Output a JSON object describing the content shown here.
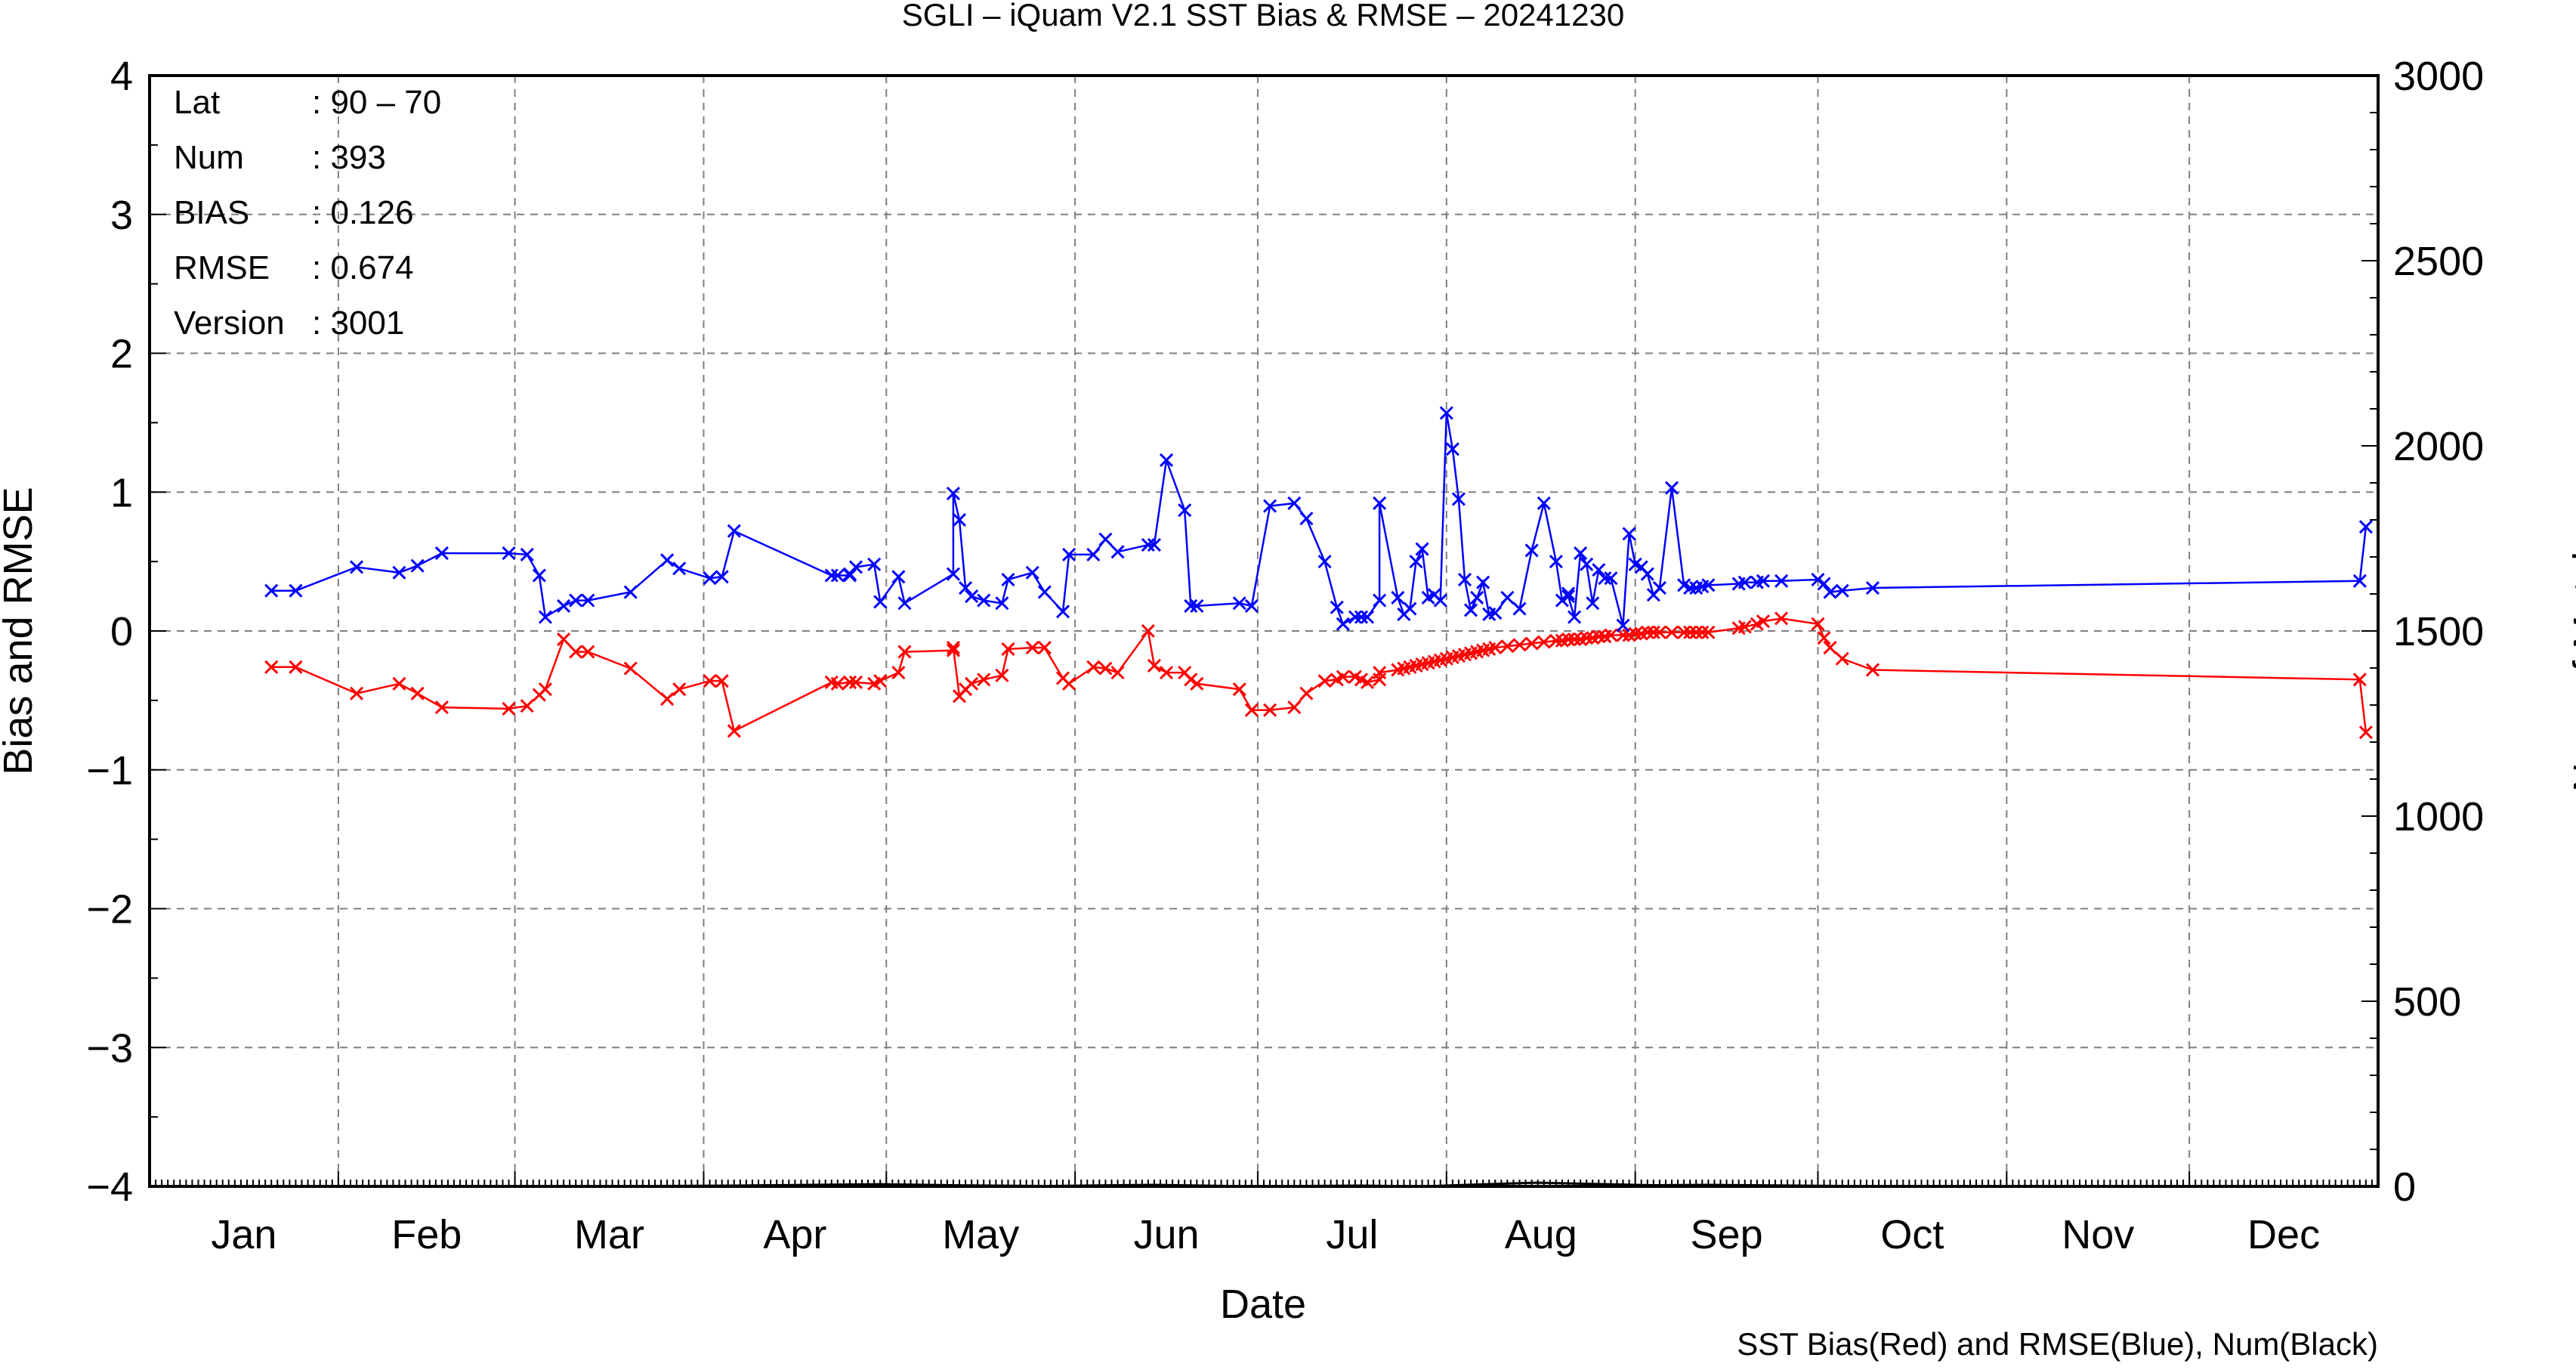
{
  "chart_data": {
    "type": "line",
    "title": "SGLI – iQuam V2.1 SST Bias & RMSE  – 20241230",
    "xlabel": "Date",
    "ylabel": "Bias and RMSE",
    "y2label": "Num of Match–up",
    "footnote": "SST Bias(Red) and RMSE(Blue), Num(Black)",
    "xlim": [
      0,
      366
    ],
    "ylim": [
      -4,
      4
    ],
    "y2lim": [
      0,
      3000
    ],
    "x_tick_labels": [
      "Jan",
      "Feb",
      "Mar",
      "Apr",
      "May",
      "Jun",
      "Jul",
      "Aug",
      "Sep",
      "Oct",
      "Nov",
      "Dec"
    ],
    "y_ticks": [
      -4,
      -3,
      -2,
      -1,
      0,
      1,
      2,
      3,
      4
    ],
    "y_tick_labels": [
      "−4",
      "−3",
      "−2",
      "−1",
      "0",
      "1",
      "2",
      "3",
      "4"
    ],
    "y2_ticks": [
      0,
      500,
      1000,
      1500,
      2000,
      2500,
      3000
    ],
    "y2_tick_labels": [
      "0",
      "500",
      "1000",
      "1500",
      "2000",
      "2500",
      "3000"
    ],
    "grid": true,
    "colors": {
      "bias": "#ff0000",
      "rmse": "#0000ff",
      "num": "#000000",
      "grid": "#7f7f7f"
    },
    "info": [
      {
        "label": "Lat",
        "value": ": 90 – 70"
      },
      {
        "label": "Num",
        "value": ": 393"
      },
      {
        "label": "BIAS",
        "value": ": 0.126"
      },
      {
        "label": "RMSE",
        "value": ": 0.674"
      },
      {
        "label": "Version",
        "value": ": 3001"
      }
    ],
    "series": [
      {
        "name": "SST Bias",
        "color": "#ff0000",
        "x": [
          20,
          24,
          34,
          41,
          44,
          48,
          59,
          62,
          64,
          65,
          68,
          70,
          72,
          79,
          85,
          87,
          92,
          94,
          96,
          112,
          113,
          115,
          115,
          116,
          119,
          120,
          123,
          124,
          132,
          132,
          133,
          134,
          135,
          137,
          140,
          141,
          145,
          147,
          150,
          151,
          155,
          157,
          159,
          164,
          165,
          167,
          170,
          171,
          172,
          179,
          181,
          184,
          188,
          190,
          193,
          195,
          196,
          198,
          199,
          200,
          202,
          202,
          205,
          206,
          207,
          208,
          209,
          210,
          211,
          212,
          213,
          214,
          215,
          216,
          217,
          218,
          219,
          220,
          221,
          223,
          225,
          227,
          229,
          231,
          232,
          233,
          233,
          234,
          235,
          236,
          237,
          238,
          239,
          240,
          242,
          243,
          244,
          245,
          246,
          247,
          248,
          250,
          252,
          253,
          254,
          255,
          256,
          261,
          262,
          264,
          265,
          268,
          274,
          275,
          276,
          278,
          283,
          363,
          364
        ],
        "y": [
          -0.26,
          -0.26,
          -0.45,
          -0.38,
          -0.45,
          -0.55,
          -0.56,
          -0.54,
          -0.46,
          -0.42,
          -0.06,
          -0.15,
          -0.15,
          -0.27,
          -0.49,
          -0.42,
          -0.36,
          -0.36,
          -0.72,
          -0.37,
          -0.38,
          -0.37,
          -0.37,
          -0.37,
          -0.38,
          -0.36,
          -0.3,
          -0.15,
          -0.14,
          -0.12,
          -0.47,
          -0.42,
          -0.38,
          -0.35,
          -0.32,
          -0.13,
          -0.12,
          -0.12,
          -0.34,
          -0.38,
          -0.26,
          -0.27,
          -0.3,
          0.0,
          -0.25,
          -0.3,
          -0.3,
          -0.35,
          -0.38,
          -0.42,
          -0.57,
          -0.57,
          -0.55,
          -0.45,
          -0.36,
          -0.35,
          -0.33,
          -0.33,
          -0.35,
          -0.37,
          -0.35,
          -0.3,
          -0.28,
          -0.27,
          -0.26,
          -0.25,
          -0.24,
          -0.23,
          -0.22,
          -0.21,
          -0.2,
          -0.19,
          -0.18,
          -0.17,
          -0.16,
          -0.15,
          -0.14,
          -0.13,
          -0.12,
          -0.11,
          -0.1,
          -0.09,
          -0.08,
          -0.07,
          -0.07,
          -0.06,
          -0.06,
          -0.06,
          -0.06,
          -0.05,
          -0.05,
          -0.04,
          -0.04,
          -0.03,
          -0.03,
          -0.03,
          -0.02,
          -0.02,
          -0.01,
          -0.01,
          -0.01,
          -0.01,
          -0.01,
          -0.01,
          -0.01,
          -0.01,
          -0.01,
          0.02,
          0.03,
          0.05,
          0.07,
          0.09,
          0.05,
          -0.05,
          -0.12,
          -0.2,
          -0.28,
          -0.35,
          -0.73
        ]
      },
      {
        "name": "SST RMSE",
        "color": "#0000ff",
        "x": [
          20,
          24,
          34,
          41,
          44,
          48,
          59,
          62,
          64,
          65,
          68,
          70,
          72,
          79,
          85,
          87,
          92,
          94,
          96,
          112,
          113,
          115,
          115,
          116,
          119,
          120,
          123,
          124,
          132,
          132,
          133,
          134,
          135,
          137,
          140,
          141,
          145,
          147,
          150,
          151,
          155,
          157,
          159,
          164,
          165,
          167,
          170,
          171,
          172,
          179,
          181,
          184,
          188,
          190,
          193,
          195,
          196,
          198,
          199,
          200,
          202,
          202,
          205,
          206,
          207,
          208,
          209,
          210,
          211,
          212,
          213,
          214,
          215,
          216,
          217,
          218,
          219,
          220,
          221,
          223,
          225,
          227,
          229,
          231,
          232,
          233,
          233,
          234,
          235,
          236,
          237,
          238,
          239,
          240,
          242,
          243,
          244,
          245,
          246,
          247,
          248,
          250,
          252,
          253,
          254,
          255,
          256,
          261,
          262,
          264,
          265,
          268,
          274,
          275,
          276,
          278,
          283,
          363,
          364
        ],
        "y": [
          0.29,
          0.29,
          0.46,
          0.42,
          0.47,
          0.56,
          0.56,
          0.55,
          0.4,
          0.1,
          0.18,
          0.22,
          0.22,
          0.28,
          0.51,
          0.45,
          0.38,
          0.39,
          0.72,
          0.4,
          0.4,
          0.4,
          0.41,
          0.46,
          0.48,
          0.21,
          0.39,
          0.2,
          0.41,
          0.99,
          0.8,
          0.31,
          0.25,
          0.22,
          0.2,
          0.37,
          0.42,
          0.28,
          0.14,
          0.55,
          0.55,
          0.66,
          0.57,
          0.62,
          0.62,
          1.23,
          0.87,
          0.18,
          0.18,
          0.2,
          0.18,
          0.9,
          0.92,
          0.81,
          0.5,
          0.17,
          0.05,
          0.1,
          0.1,
          0.1,
          0.22,
          0.92,
          0.24,
          0.12,
          0.16,
          0.5,
          0.59,
          0.24,
          0.26,
          0.22,
          1.57,
          1.31,
          0.95,
          0.37,
          0.15,
          0.24,
          0.35,
          0.12,
          0.13,
          0.24,
          0.16,
          0.58,
          0.92,
          0.5,
          0.22,
          0.27,
          0.25,
          0.1,
          0.56,
          0.48,
          0.2,
          0.44,
          0.38,
          0.38,
          0.04,
          0.7,
          0.48,
          0.46,
          0.41,
          0.26,
          0.31,
          1.03,
          0.33,
          0.31,
          0.31,
          0.32,
          0.33,
          0.34,
          0.35,
          0.35,
          0.36,
          0.36,
          0.37,
          0.34,
          0.28,
          0.29,
          0.31,
          0.36,
          0.75
        ]
      },
      {
        "name": "Num",
        "color": "#000000",
        "axis": "y2",
        "x": [
          20,
          48,
          68,
          96,
          120,
          132,
          147,
          165,
          181,
          199,
          209,
          218,
          228,
          247,
          256,
          278,
          363
        ],
        "y": [
          0,
          1,
          0,
          2,
          6,
          3,
          1,
          4,
          0,
          2,
          0,
          5,
          10,
          3,
          4,
          1,
          0
        ]
      }
    ]
  }
}
